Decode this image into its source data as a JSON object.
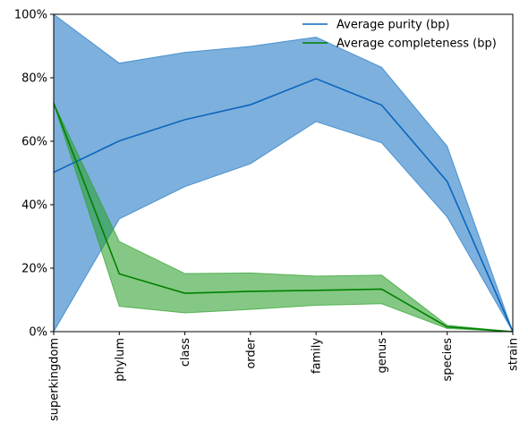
{
  "chart_data": {
    "type": "line",
    "categories": [
      "superkingdom",
      "phylum",
      "class",
      "order",
      "family",
      "genus",
      "species",
      "strain"
    ],
    "ylim": [
      0,
      100
    ],
    "y_ticks": [
      0,
      20,
      40,
      60,
      80,
      100
    ],
    "y_tick_labels": [
      "0%",
      "20%",
      "40%",
      "60%",
      "80%",
      "100%"
    ],
    "grid": false,
    "legend_position": "top-right",
    "series": [
      {
        "name": "Average purity (bp)",
        "color": "#0b66bd",
        "band_color": "#1f77c4",
        "values": [
          50.2,
          60.1,
          66.8,
          71.5,
          79.7,
          71.4,
          47.3,
          0
        ],
        "lower": [
          0,
          35.5,
          45.7,
          52.9,
          66.2,
          59.5,
          36.1,
          0
        ],
        "upper": [
          100,
          84.6,
          88.0,
          89.9,
          92.8,
          83.3,
          58.4,
          0
        ]
      },
      {
        "name": "Average completeness (bp)",
        "color": "#008000",
        "band_color": "#2ca02c",
        "values": [
          72.0,
          18.2,
          12.1,
          12.7,
          13.0,
          13.4,
          1.5,
          0
        ],
        "lower": [
          72.0,
          8.0,
          5.9,
          7.0,
          8.3,
          8.8,
          1.0,
          0
        ],
        "upper": [
          72.0,
          28.4,
          18.3,
          18.5,
          17.5,
          17.8,
          2.0,
          0
        ]
      }
    ]
  }
}
